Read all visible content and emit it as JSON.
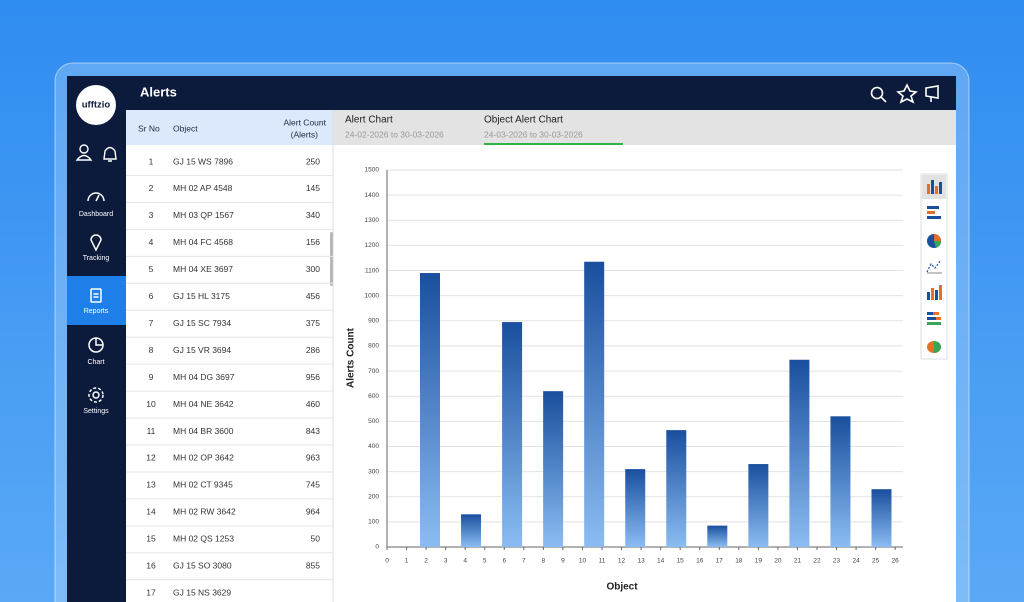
{
  "app": {
    "logo": "ufftzio",
    "nav": [
      {
        "label": "Dashboard"
      },
      {
        "label": "Tracking"
      },
      {
        "label": "Reports",
        "active": true
      },
      {
        "label": "Chart"
      },
      {
        "label": "Settings"
      }
    ]
  },
  "header": {
    "title": "Alerts"
  },
  "table": {
    "columns": [
      "Sr No",
      "Object",
      [
        "Alert Count",
        "(Alerts)"
      ]
    ],
    "rows": [
      [
        1,
        "GJ 15 WS 7896",
        250
      ],
      [
        2,
        "MH 02 AP 4548",
        145
      ],
      [
        3,
        "MH 03 QP 1567",
        340
      ],
      [
        4,
        "MH 04 FC 4568",
        156
      ],
      [
        5,
        "MH 04 XE 3697",
        300
      ],
      [
        6,
        "GJ 15 HL 3175",
        456
      ],
      [
        7,
        "GJ 15 SC 7934",
        375
      ],
      [
        8,
        "GJ 15 VR 3694",
        286
      ],
      [
        9,
        "MH 04 DG 3697",
        956
      ],
      [
        10,
        "MH 04 NE 3642",
        460
      ],
      [
        11,
        "MH 04 BR 3600",
        843
      ],
      [
        12,
        "MH 02 OP 3642",
        963
      ],
      [
        13,
        "MH 02 CT 9345",
        745
      ],
      [
        14,
        "MH 02 RW 3642",
        964
      ],
      [
        15,
        "MH 02 QS 1253",
        50
      ],
      [
        16,
        "GJ 15 SO 3080",
        855
      ],
      [
        17,
        "GJ 15 NS 3629",
        null
      ]
    ]
  },
  "tabs": [
    {
      "title": "Alert Chart",
      "range": "24-02-2026 to 30-03-2026"
    },
    {
      "title": "Object Alert Chart",
      "range": "24-03-2026 to 30-03-2026",
      "active": true
    }
  ],
  "chart_data": {
    "type": "bar",
    "x_label": "Object",
    "y_label": "Alerts Count",
    "x": [
      2.2,
      4.3,
      6.4,
      8.5,
      10.6,
      12.7,
      14.8,
      16.9,
      19.0,
      21.1,
      23.2,
      25.3
    ],
    "values": [
      1090,
      130,
      895,
      620,
      1135,
      310,
      465,
      85,
      330,
      745,
      520,
      230
    ],
    "color": "#1a4f9e",
    "xlim": [
      0,
      26.4
    ],
    "xticks": [
      0,
      1,
      2,
      3,
      4,
      5,
      6,
      7,
      8,
      9,
      10,
      11,
      12,
      13,
      14,
      15,
      16,
      17,
      18,
      19,
      20,
      21,
      22,
      23,
      24,
      25,
      26
    ],
    "ylim": [
      0,
      1500
    ],
    "yticks": [
      0,
      100,
      200,
      300,
      400,
      500,
      600,
      700,
      800,
      900,
      1000,
      1100,
      1200,
      1300,
      1400,
      1500
    ],
    "grid": true
  }
}
